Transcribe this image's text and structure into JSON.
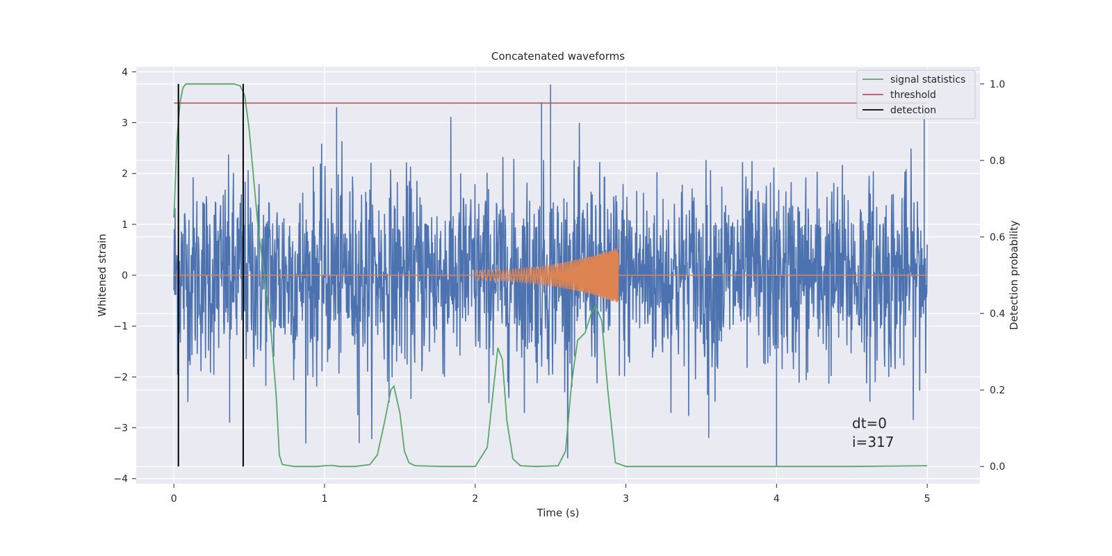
{
  "chart_data": {
    "type": "line",
    "title": "Concatenated waveforms",
    "xlabel": "Time (s)",
    "ylabel": "Whitened strain",
    "y2label": "Detection probability",
    "xlim": [
      -0.25,
      5.35
    ],
    "ylim": [
      -4.1,
      4.1
    ],
    "y2lim": [
      -0.045,
      1.045
    ],
    "xticks": [
      0,
      1,
      2,
      3,
      4,
      5
    ],
    "yticks": [
      -4,
      -3,
      -2,
      -1,
      0,
      1,
      2,
      3,
      4
    ],
    "y2ticks": [
      0.0,
      0.2,
      0.4,
      0.6,
      0.8,
      1.0
    ],
    "grid": true,
    "legend_position": "top-right",
    "colors": {
      "noise": "#4c72b0",
      "template": "#dd8452",
      "signal_statistics": "#55a868",
      "threshold": "#c44e52",
      "detection": "#000000",
      "background": "#eaeaf2",
      "grid": "#ffffff"
    },
    "legend": [
      {
        "key": "signal_statistics",
        "label": "signal statistics"
      },
      {
        "key": "threshold",
        "label": "threshold"
      },
      {
        "key": "detection",
        "label": "detection"
      }
    ],
    "series": [
      {
        "name": "whitened strain noise",
        "axis": "left",
        "description_samples": {
          "x_start": 0,
          "x_end": 5,
          "typical_envelope": 2.0,
          "max_peak": 3.75,
          "min_peak": -3.75,
          "outlier_at": 4.0
        }
      },
      {
        "name": "injected waveform",
        "axis": "left",
        "x_start": 2.0,
        "x_end": 2.95,
        "amplitude_start": 0.1,
        "amplitude_end": 0.55
      },
      {
        "name": "signal statistics",
        "axis": "right",
        "x": [
          0.0,
          0.02,
          0.04,
          0.06,
          0.08,
          0.12,
          0.2,
          0.3,
          0.4,
          0.44,
          0.47,
          0.5,
          0.53,
          0.56,
          0.6,
          0.64,
          0.68,
          0.7,
          0.72,
          0.8,
          0.95,
          1.0,
          1.05,
          1.1,
          1.2,
          1.3,
          1.35,
          1.4,
          1.44,
          1.46,
          1.5,
          1.53,
          1.56,
          1.6,
          1.8,
          2.0,
          2.08,
          2.12,
          2.15,
          2.18,
          2.21,
          2.25,
          2.3,
          2.4,
          2.55,
          2.6,
          2.64,
          2.68,
          2.73,
          2.77,
          2.8,
          2.84,
          2.88,
          2.93,
          3.0,
          3.5,
          4.0,
          4.5,
          5.0
        ],
        "y": [
          0.65,
          0.85,
          0.95,
          0.99,
          1.0,
          1.0,
          1.0,
          1.0,
          1.0,
          0.995,
          0.97,
          0.88,
          0.75,
          0.62,
          0.5,
          0.38,
          0.18,
          0.03,
          0.005,
          0.0,
          0.0,
          0.002,
          0.003,
          0.0,
          0.0,
          0.005,
          0.03,
          0.12,
          0.2,
          0.21,
          0.14,
          0.04,
          0.01,
          0.002,
          0.0,
          0.0,
          0.05,
          0.2,
          0.31,
          0.28,
          0.12,
          0.02,
          0.002,
          0.0,
          0.002,
          0.04,
          0.22,
          0.33,
          0.35,
          0.4,
          0.42,
          0.38,
          0.2,
          0.01,
          0.0,
          0.0,
          0.0,
          0.0,
          0.002
        ]
      },
      {
        "name": "threshold",
        "axis": "right",
        "x": [
          0,
          5
        ],
        "y": [
          0.95,
          0.95
        ]
      }
    ],
    "detections": [
      0.03,
      0.46
    ],
    "annotations": [
      {
        "id": "dt",
        "text": "dt=0",
        "x": 4.5,
        "y": -2.88
      },
      {
        "id": "i",
        "text": "i=317",
        "x": 4.5,
        "y": -3.26
      }
    ]
  }
}
